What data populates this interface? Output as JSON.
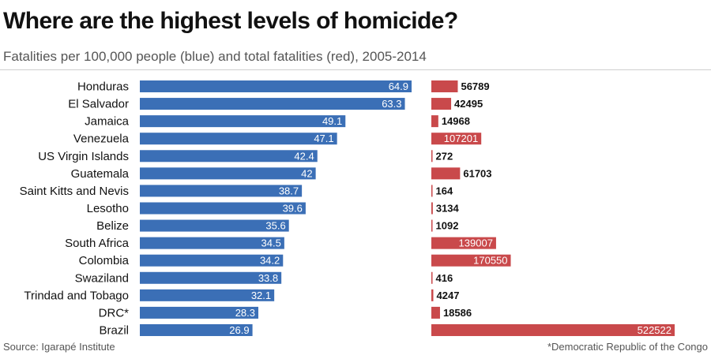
{
  "title": "Where are the highest levels of homicide?",
  "subtitle": "Fatalities per 100,000 people (blue) and total fatalities (red), 2005-2014",
  "source": "Source: Igarapé Institute",
  "footnote": "*Democratic Republic of the Congo",
  "colors": {
    "rate": "#3b6fb6",
    "total": "#c9494b"
  },
  "chart_data": {
    "type": "bar",
    "categories": [
      "Honduras",
      "El Salvador",
      "Jamaica",
      "Venezuela",
      "US Virgin Islands",
      "Guatemala",
      "Saint Kitts and Nevis",
      "Lesotho",
      "Belize",
      "South Africa",
      "Colombia",
      "Swaziland",
      "Trindad and Tobago",
      "DRC*",
      "Brazil"
    ],
    "series": [
      {
        "values": [
          64.9,
          63.3,
          49.1,
          47.1,
          42.4,
          42,
          38.7,
          39.6,
          35.6,
          34.5,
          34.2,
          33.8,
          32.1,
          28.3,
          26.9
        ]
      },
      {
        "values": [
          56789,
          42495,
          14968,
          107201,
          272,
          61703,
          164,
          3134,
          1092,
          139007,
          170550,
          416,
          4247,
          18586,
          522522
        ]
      }
    ]
  }
}
